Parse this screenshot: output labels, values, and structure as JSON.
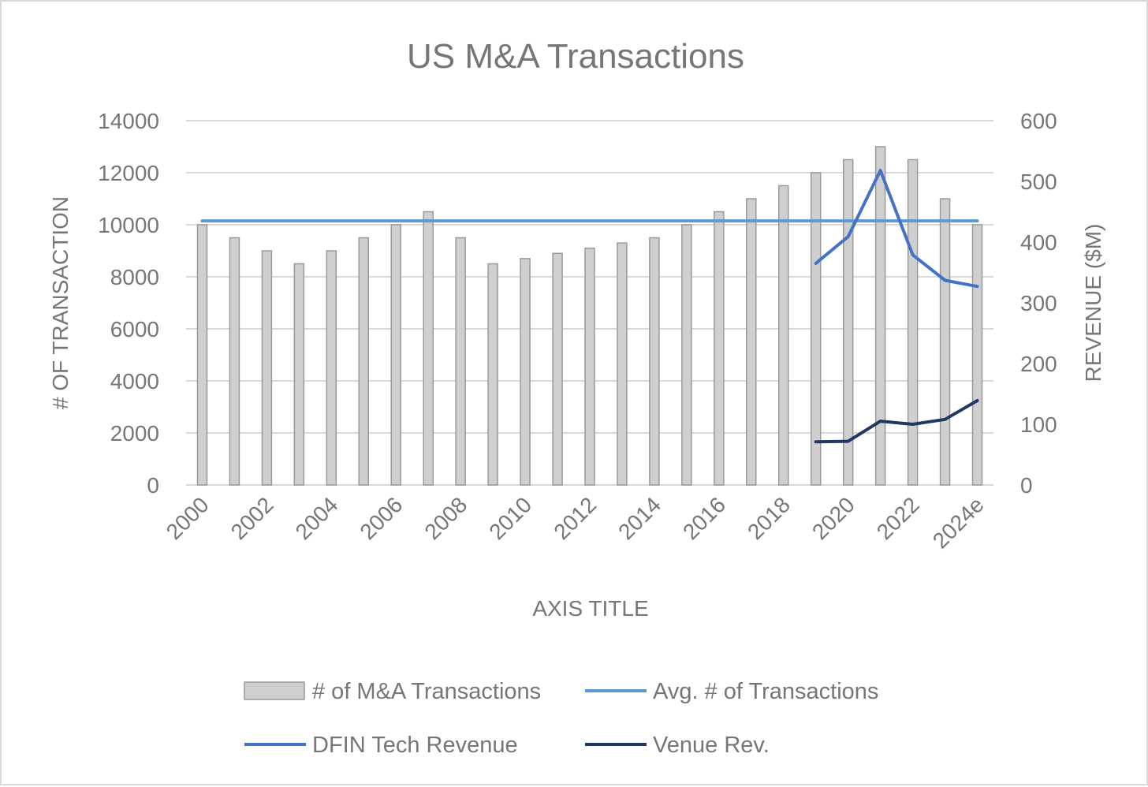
{
  "chart_data": {
    "type": "bar",
    "title": "US M&A Transactions",
    "xlabel": "AXIS TITLE",
    "ylabel": "# OF TRANSACTION",
    "y2label": "REVENUE ($M)",
    "ylim": [
      0,
      14000
    ],
    "y2lim": [
      0,
      600
    ],
    "yticks": [
      0,
      2000,
      4000,
      6000,
      8000,
      10000,
      12000,
      14000
    ],
    "y2ticks": [
      0,
      100,
      200,
      300,
      400,
      500,
      600
    ],
    "categories": [
      "2000",
      "2001",
      "2002",
      "2003",
      "2004",
      "2005",
      "2006",
      "2007",
      "2008",
      "2009",
      "2010",
      "2011",
      "2012",
      "2013",
      "2014",
      "2015",
      "2016",
      "2017",
      "2018",
      "2019",
      "2020",
      "2021",
      "2022",
      "2023",
      "2024e"
    ],
    "xtick_labels": [
      "2000",
      "2002",
      "2004",
      "2006",
      "2008",
      "2010",
      "2012",
      "2014",
      "2016",
      "2018",
      "2020",
      "2022",
      "2024e"
    ],
    "grid": true,
    "legend_position": "bottom",
    "series": [
      {
        "name": "# of M&A Transactions",
        "type": "bar",
        "axis": "left",
        "color": "#cfcfcf",
        "values": [
          10000,
          9500,
          9000,
          8500,
          9000,
          9500,
          10000,
          10500,
          9500,
          8500,
          8700,
          8900,
          9100,
          9300,
          9500,
          10000,
          10500,
          11000,
          11500,
          12000,
          12500,
          13000,
          12500,
          11000,
          10000
        ]
      },
      {
        "name": "Avg. # of Transactions",
        "type": "line",
        "axis": "left",
        "color": "#5b9bd5",
        "values": [
          10150,
          10150,
          10150,
          10150,
          10150,
          10150,
          10150,
          10150,
          10150,
          10150,
          10150,
          10150,
          10150,
          10150,
          10150,
          10150,
          10150,
          10150,
          10150,
          10150,
          10150,
          10150,
          10150,
          10150,
          10150
        ]
      },
      {
        "name": "DFIN Tech Revenue",
        "type": "line",
        "axis": "right",
        "color": "#4472c4",
        "values": [
          null,
          null,
          null,
          null,
          null,
          null,
          null,
          null,
          null,
          null,
          null,
          null,
          null,
          null,
          null,
          null,
          null,
          null,
          null,
          365,
          409,
          518,
          379,
          337,
          327
        ]
      },
      {
        "name": "Venue Rev.",
        "type": "line",
        "axis": "right",
        "color": "#203864",
        "values": [
          null,
          null,
          null,
          null,
          null,
          null,
          null,
          null,
          null,
          null,
          null,
          null,
          null,
          null,
          null,
          null,
          null,
          null,
          null,
          71,
          72,
          105,
          100,
          108,
          139
        ]
      }
    ]
  }
}
